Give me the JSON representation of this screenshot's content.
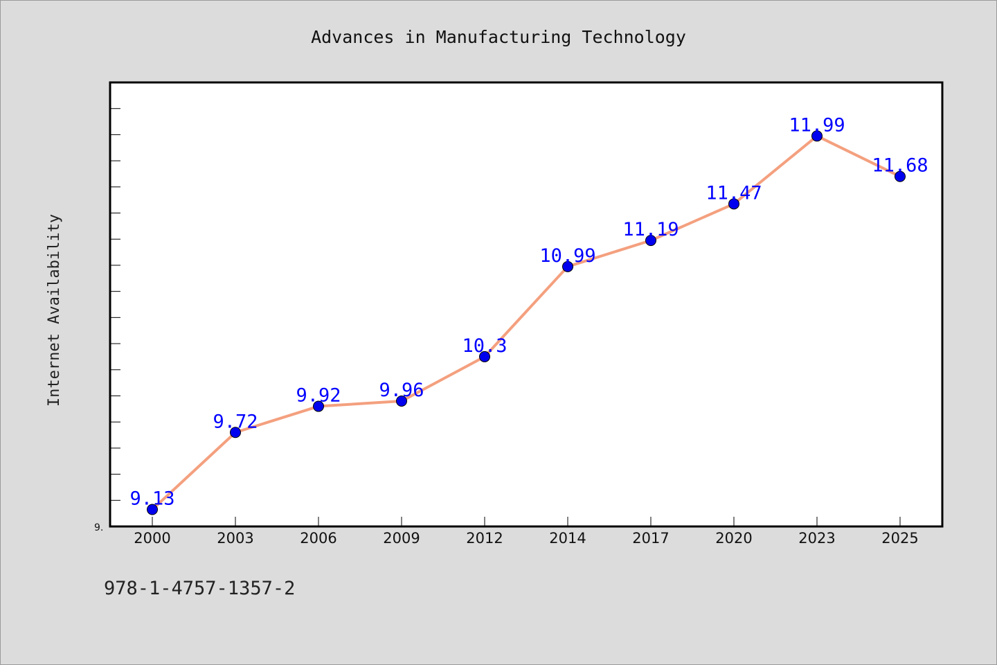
{
  "chart_data": {
    "type": "line",
    "title": "Advances in Manufacturing Technology",
    "xlabel": "",
    "ylabel": "Internet Availability",
    "categories": [
      "2000",
      "2003",
      "2006",
      "2009",
      "2012",
      "2014",
      "2017",
      "2020",
      "2023",
      "2025"
    ],
    "series": [
      {
        "values": [
          9.13,
          9.72,
          9.92,
          9.96,
          10.3,
          10.99,
          11.19,
          11.47,
          11.99,
          11.68
        ],
        "labels": [
          "9.13",
          "9.72",
          "9.92",
          "9.96",
          "10.3",
          "10.99",
          "11.19",
          "11.47",
          "11.99",
          "11.68"
        ]
      }
    ],
    "ylim": [
      9.0,
      12.4
    ],
    "y_tick_labels": [
      "9."
    ],
    "grid": false,
    "colors": {
      "line": "#f4a07f",
      "marker": "#0000ee",
      "data_label": "#0000ff",
      "plot_bg": "#ffffff",
      "page_bg": "#dcdcdc"
    }
  },
  "footer_text": "978-1-4757-1357-2"
}
